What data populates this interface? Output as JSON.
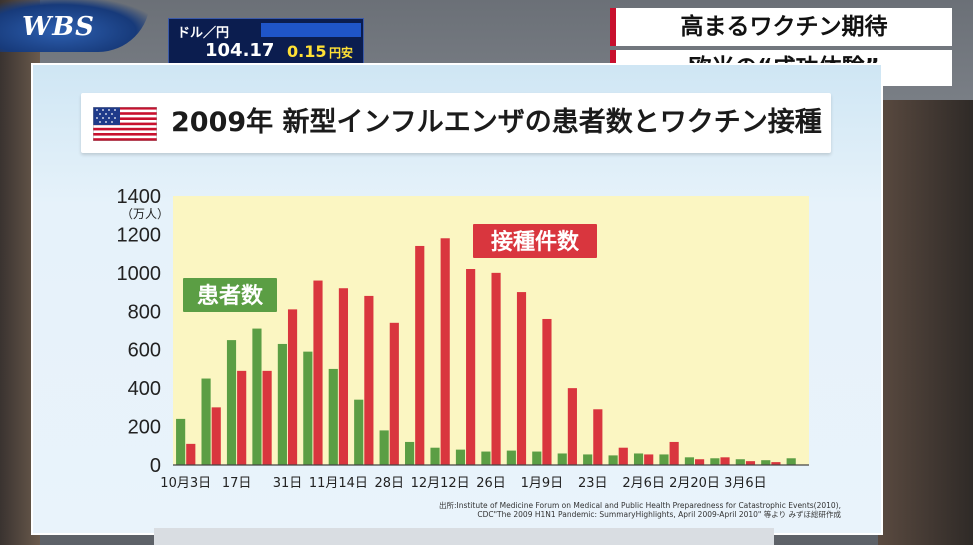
{
  "logo": {
    "text": "WBS"
  },
  "fx": {
    "pair": "ドル／円",
    "rate": "104.17",
    "change": "0.15",
    "change_unit": "円安"
  },
  "caption": {
    "line1": "高まるワクチン期待",
    "line2": "欧米の“成功体験”"
  },
  "title": {
    "flag_icon": "us-flag-icon",
    "text": "2009年 新型インフルエンザの患者数とワクチン接種"
  },
  "source": {
    "line1": "出所:Institute of Medicine Forum on Medical and Public Health Preparedness for Catastrophic Events(2010),",
    "line2": "CDC\"The 2009 H1N1 Pandemic: SummaryHighlights, April 2009-April 2010\" 等より みずほ総研作成"
  },
  "chart_data": {
    "type": "bar",
    "ylabel": "（万人）",
    "ylim": [
      0,
      1400
    ],
    "yticks": [
      0,
      200,
      400,
      600,
      800,
      1000,
      1200,
      1400
    ],
    "tick_labels": [
      "10月3日",
      "17日",
      "31日",
      "11月14日",
      "28日",
      "12月12日",
      "26日",
      "1月9日",
      "23日",
      "2月6日",
      "2月20日",
      "3月6日"
    ],
    "tick_label_week_index": [
      0,
      2,
      4,
      6,
      8,
      10,
      12,
      14,
      16,
      18,
      20,
      22
    ],
    "series": [
      {
        "name": "患者数",
        "color": "#5b9e44",
        "values": [
          240,
          450,
          650,
          710,
          630,
          590,
          500,
          340,
          180,
          120,
          90,
          80,
          70,
          75,
          70,
          60,
          55,
          50,
          60,
          55,
          40,
          35,
          30,
          25,
          35
        ]
      },
      {
        "name": "接種件数",
        "color": "#d9363e",
        "values": [
          110,
          300,
          490,
          490,
          810,
          960,
          920,
          880,
          740,
          1140,
          1180,
          1020,
          1000,
          900,
          760,
          400,
          290,
          90,
          55,
          120,
          30,
          40,
          20,
          15,
          0
        ]
      }
    ],
    "annotations": [
      {
        "text": "患者数",
        "series": "患者数"
      },
      {
        "text": "接種件数",
        "series": "接種件数"
      }
    ],
    "grid": false,
    "plot_background": "#fbf6c2"
  }
}
